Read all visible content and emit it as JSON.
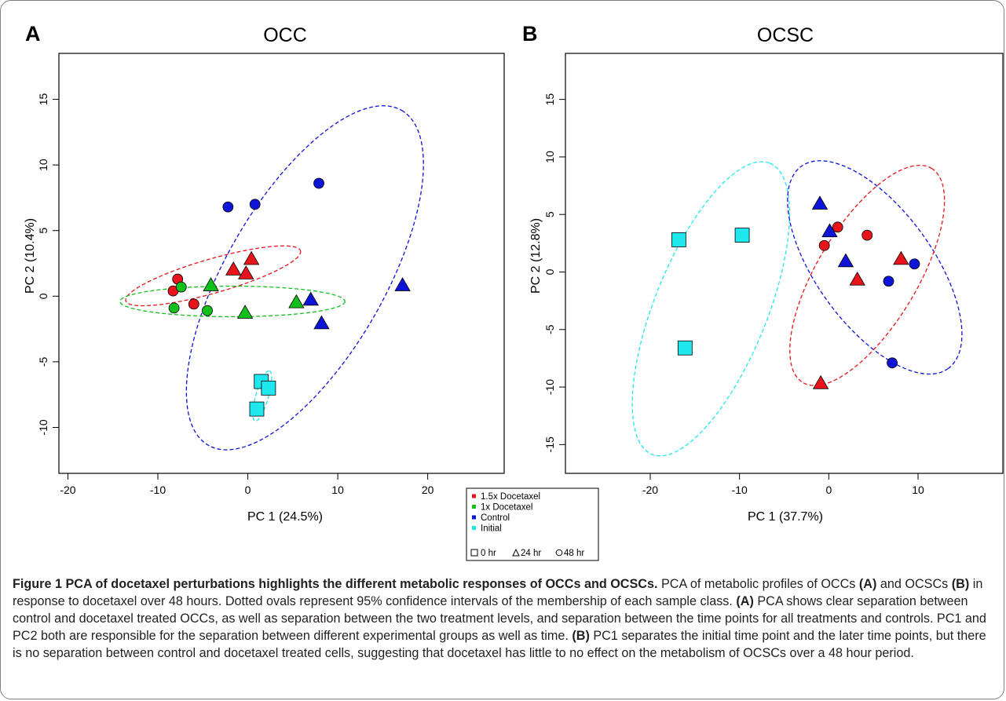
{
  "colors": {
    "red": "#e8141b",
    "green": "#11c01a",
    "blue": "#0d13d7",
    "cyan": "#1ee8ee"
  },
  "chart_data": [
    {
      "panel": "A",
      "type": "scatter",
      "title": "OCC",
      "xlabel": "PC 1 (24.5%)",
      "ylabel": "PC 2 (10.4%)",
      "xlim": [
        -21,
        28.5
      ],
      "ylim": [
        -13.5,
        18.5
      ],
      "xticks": [
        -20,
        -10,
        0,
        10,
        20
      ],
      "yticks": [
        -10,
        -5,
        0,
        5,
        10,
        15
      ],
      "series": [
        {
          "name": "1.5x Docetaxel",
          "color": "red",
          "points": [
            {
              "x": -8.3,
              "y": 0.4,
              "shape": "circle"
            },
            {
              "x": -7.8,
              "y": 1.3,
              "shape": "circle"
            },
            {
              "x": -6,
              "y": -0.6,
              "shape": "circle"
            },
            {
              "x": -1.6,
              "y": 2,
              "shape": "triangle"
            },
            {
              "x": 0.4,
              "y": 2.8,
              "shape": "triangle"
            },
            {
              "x": -0.2,
              "y": 1.7,
              "shape": "triangle"
            }
          ]
        },
        {
          "name": "1x Docetaxel",
          "color": "green",
          "points": [
            {
              "x": -8.2,
              "y": -0.9,
              "shape": "circle"
            },
            {
              "x": -7.4,
              "y": 0.7,
              "shape": "circle"
            },
            {
              "x": -4.5,
              "y": -1.1,
              "shape": "circle"
            },
            {
              "x": -4.1,
              "y": 0.8,
              "shape": "triangle"
            },
            {
              "x": -0.3,
              "y": -1.3,
              "shape": "triangle"
            },
            {
              "x": 5.4,
              "y": -0.5,
              "shape": "triangle"
            }
          ]
        },
        {
          "name": "Control",
          "color": "blue",
          "points": [
            {
              "x": -2.2,
              "y": 6.8,
              "shape": "circle"
            },
            {
              "x": 0.8,
              "y": 7,
              "shape": "circle"
            },
            {
              "x": 7.9,
              "y": 8.6,
              "shape": "circle"
            },
            {
              "x": 7,
              "y": -0.3,
              "shape": "triangle"
            },
            {
              "x": 8.2,
              "y": -2.1,
              "shape": "triangle"
            },
            {
              "x": 17.2,
              "y": 0.8,
              "shape": "triangle"
            }
          ]
        },
        {
          "name": "Initial",
          "color": "cyan",
          "points": [
            {
              "x": 1.5,
              "y": -6.5,
              "shape": "square"
            },
            {
              "x": 2.3,
              "y": -7,
              "shape": "square"
            },
            {
              "x": 1,
              "y": -8.6,
              "shape": "square"
            }
          ]
        }
      ],
      "ellipses": [
        {
          "color": "blue",
          "cx": 6.35,
          "cy": 1.4,
          "rx": 21.5,
          "ry": 8.8,
          "angle": 60
        },
        {
          "color": "red",
          "cx": -3.85,
          "cy": 1.55,
          "rx": 10.1,
          "ry": 1.9,
          "angle": 16
        },
        {
          "color": "green",
          "cx": -1.7,
          "cy": -0.4,
          "rx": 12.5,
          "ry": 1.7,
          "angle": 0
        },
        {
          "color": "cyan",
          "cx": 1.6,
          "cy": -7.6,
          "rx": 2.9,
          "ry": 0.7,
          "angle": 74
        }
      ]
    },
    {
      "panel": "B",
      "type": "scatter",
      "title": "OCSC",
      "xlabel": "PC 1 (37.7%)",
      "ylabel": "PC 2 (12.8%)",
      "xlim": [
        -29.5,
        19.5
      ],
      "ylim": [
        -17.5,
        19
      ],
      "xticks": [
        -20,
        -10,
        0,
        10
      ],
      "yticks": [
        -15,
        -10,
        -5,
        0,
        5,
        10,
        15
      ],
      "series": [
        {
          "name": "1.5x Docetaxel",
          "color": "red",
          "points": [
            {
              "x": -0.5,
              "y": 2.3,
              "shape": "circle"
            },
            {
              "x": 1,
              "y": 3.9,
              "shape": "circle"
            },
            {
              "x": 4.3,
              "y": 3.2,
              "shape": "circle"
            },
            {
              "x": 3.2,
              "y": -0.7,
              "shape": "triangle"
            },
            {
              "x": 8.1,
              "y": 1.1,
              "shape": "triangle"
            },
            {
              "x": -0.9,
              "y": -9.7,
              "shape": "triangle"
            }
          ]
        },
        {
          "name": "Control",
          "color": "blue",
          "points": [
            {
              "x": 6.7,
              "y": -0.8,
              "shape": "circle"
            },
            {
              "x": 9.6,
              "y": 0.7,
              "shape": "circle"
            },
            {
              "x": 7.1,
              "y": -7.9,
              "shape": "circle"
            },
            {
              "x": -1,
              "y": 5.9,
              "shape": "triangle"
            },
            {
              "x": 0.1,
              "y": 3.5,
              "shape": "triangle"
            },
            {
              "x": 1.9,
              "y": 0.9,
              "shape": "triangle"
            }
          ]
        },
        {
          "name": "Initial",
          "color": "cyan",
          "points": [
            {
              "x": -16.8,
              "y": 2.8,
              "shape": "square"
            },
            {
              "x": -9.7,
              "y": 3.2,
              "shape": "square"
            },
            {
              "x": -16.1,
              "y": -6.6,
              "shape": "square"
            }
          ]
        }
      ],
      "ellipses": [
        {
          "color": "cyan",
          "cx": -13.2,
          "cy": -3.2,
          "rx": 17.6,
          "ry": 6.3,
          "angle": 68
        },
        {
          "color": "blue",
          "cx": 5.15,
          "cy": 0.4,
          "rx": 14,
          "ry": 6.5,
          "angle": -54
        },
        {
          "color": "red",
          "cx": 4.3,
          "cy": -0.3,
          "rx": 14,
          "ry": 5.6,
          "angle": 59
        }
      ]
    }
  ],
  "legend": {
    "items": [
      {
        "label": "1.5x Docetaxel",
        "color": "red"
      },
      {
        "label": "1x Docetaxel",
        "color": "green"
      },
      {
        "label": "Control",
        "color": "blue"
      },
      {
        "label": "Initial",
        "color": "cyan"
      }
    ],
    "shapes": {
      "hr0": "0 hr",
      "hr24": "24 hr",
      "hr48": "48 hr"
    }
  },
  "caption": {
    "title": "Figure 1 PCA of docetaxel perturbations highlights the different metabolic responses of OCCs and OCSCs.",
    "s1": " PCA of metabolic profiles of OCCs ",
    "A1": "(A)",
    "s2": " and OCSCs ",
    "B1": "(B)",
    "s3": " in response to docetaxel over 48 hours. Dotted ovals represent 95% confidence intervals of the membership of each sample class. ",
    "A2": "(A)",
    "s4": " PCA shows clear separation between control and docetaxel treated OCCs, as well as separation between the two treatment levels, and separation between the time points for all treatments and controls. PC1 and PC2 both are responsible for the separation between different experimental groups as well as time. ",
    "B2": "(B)",
    "s5": " PC1 separates the initial time point and the later time points, but there is no separation between control and docetaxel treated cells, suggesting that docetaxel has little to no effect on the metabolism of OCSCs over a 48 hour period."
  }
}
